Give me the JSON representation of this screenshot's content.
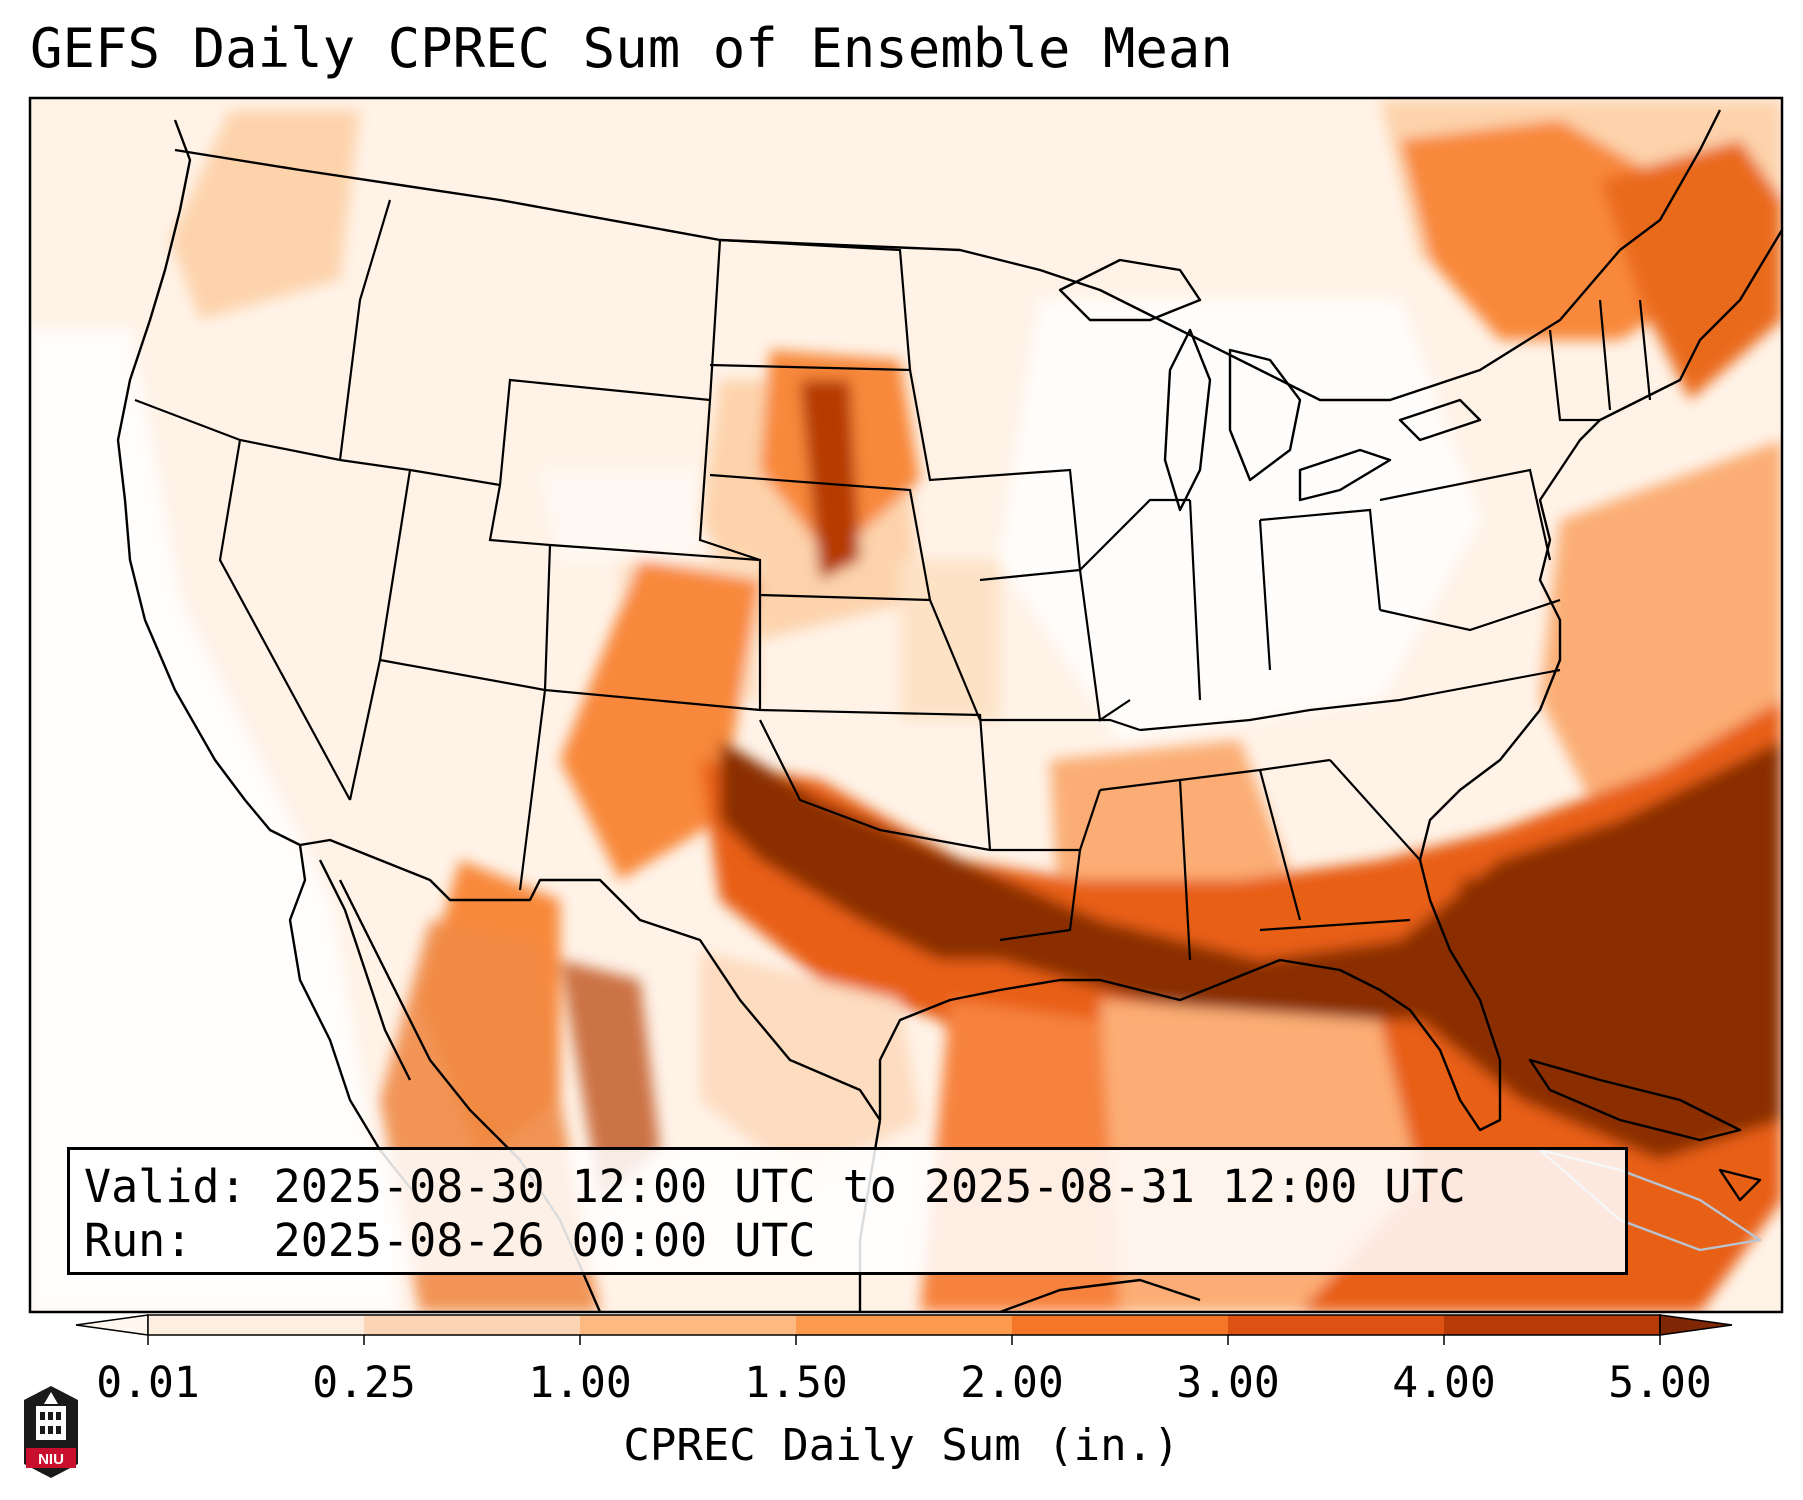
{
  "title": "GEFS Daily CPREC Sum of Ensemble Mean",
  "info": {
    "valid_line": "Valid: 2025-08-30 12:00 UTC to 2025-08-31 12:00 UTC",
    "run_line": "Run:   2025-08-26 00:00 UTC"
  },
  "colorbar": {
    "label": "CPREC Daily Sum (in.)",
    "ticks": [
      "0.01",
      "0.25",
      "1.00",
      "1.50",
      "2.00",
      "3.00",
      "4.00",
      "5.00"
    ],
    "colors": [
      "#fdeee0",
      "#fcd6b4",
      "#fdb980",
      "#fd9a4e",
      "#f57626",
      "#dd5212",
      "#b63b06"
    ],
    "under_color": "#fff7ef",
    "over_color": "#7f2704"
  },
  "map": {
    "projection": "Lambert conformal (CONUS)",
    "region": "Contiguous United States, southern Canada, northern Mexico, Gulf of Mexico, western Atlantic",
    "heavy_precip_color": "#8a2d06"
  },
  "logo": {
    "name": "niu-logo",
    "text": "NIU",
    "color": "#c8102e"
  }
}
